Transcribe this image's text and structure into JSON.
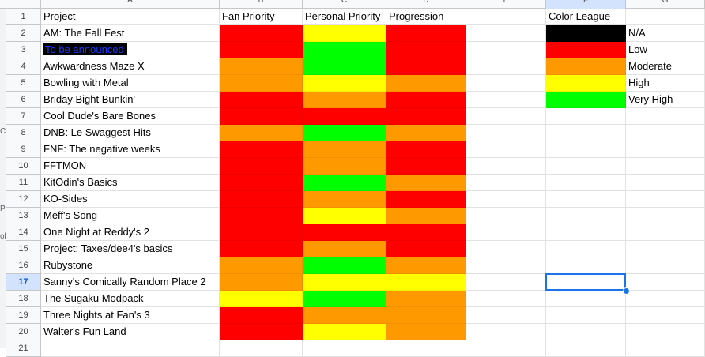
{
  "colors": {
    "red": "#ff0000",
    "orange": "#ff9900",
    "yellow": "#ffff00",
    "green": "#00ff00",
    "black": "#000000",
    "selection": "#1a73e8"
  },
  "column_headers": [
    "A",
    "B",
    "C",
    "D",
    "E",
    "F",
    "G"
  ],
  "headers": {
    "project": "Project",
    "fan_priority": "Fan Priority",
    "personal_priority": "Personal Priority",
    "progression": "Progression",
    "color_league": "Color League"
  },
  "left_edge_fragments": [
    "C",
    "P",
    "ol"
  ],
  "rows": [
    {
      "num": "2",
      "project": "AM: The Fall Fest",
      "fan": "red",
      "personal": "yellow",
      "progress": "red"
    },
    {
      "num": "3",
      "project": "To be announced",
      "fan": "red",
      "personal": "green",
      "progress": "red",
      "special": "tba"
    },
    {
      "num": "4",
      "project": "Awkwardness Maze X",
      "fan": "orange",
      "personal": "green",
      "progress": "red"
    },
    {
      "num": "5",
      "project": "Bowling with Metal",
      "fan": "orange",
      "personal": "yellow",
      "progress": "orange"
    },
    {
      "num": "6",
      "project": "Briday Bight Bunkin'",
      "fan": "red",
      "personal": "orange",
      "progress": "red"
    },
    {
      "num": "7",
      "project": "Cool Dude's Bare Bones",
      "fan": "red",
      "personal": "red",
      "progress": "red"
    },
    {
      "num": "8",
      "project": "DNB: Le Swaggest Hits",
      "fan": "orange",
      "personal": "green",
      "progress": "orange"
    },
    {
      "num": "9",
      "project": "FNF: The negative weeks",
      "fan": "red",
      "personal": "orange",
      "progress": "red"
    },
    {
      "num": "10",
      "project": "FFTMON",
      "fan": "red",
      "personal": "orange",
      "progress": "red"
    },
    {
      "num": "11",
      "project": "KitOdin's Basics",
      "fan": "red",
      "personal": "green",
      "progress": "orange"
    },
    {
      "num": "12",
      "project": "KO-Sides",
      "fan": "red",
      "personal": "orange",
      "progress": "red"
    },
    {
      "num": "13",
      "project": "Meff's Song",
      "fan": "red",
      "personal": "yellow",
      "progress": "orange"
    },
    {
      "num": "14",
      "project": "One Night at Reddy's 2",
      "fan": "red",
      "personal": "red",
      "progress": "red"
    },
    {
      "num": "15",
      "project": "Project: Taxes/dee4's basics",
      "fan": "red",
      "personal": "orange",
      "progress": "red"
    },
    {
      "num": "16",
      "project": "Rubystone",
      "fan": "orange",
      "personal": "green",
      "progress": "orange"
    },
    {
      "num": "17",
      "project": "Sanny's Comically Random Place 2",
      "fan": "orange",
      "personal": "yellow",
      "progress": "yellow"
    },
    {
      "num": "18",
      "project": "The Sugaku Modpack",
      "fan": "yellow",
      "personal": "green",
      "progress": "orange"
    },
    {
      "num": "19",
      "project": "Three Nights at Fan's 3",
      "fan": "red",
      "personal": "orange",
      "progress": "orange"
    },
    {
      "num": "20",
      "project": "Walter's Fun Land",
      "fan": "red",
      "personal": "yellow",
      "progress": "orange"
    }
  ],
  "legend": [
    {
      "color": "black",
      "label": "N/A"
    },
    {
      "color": "red",
      "label": "Low"
    },
    {
      "color": "orange",
      "label": "Moderate"
    },
    {
      "color": "yellow",
      "label": "High"
    },
    {
      "color": "green",
      "label": "Very High"
    }
  ],
  "row_numbers": {
    "header": "1",
    "last_partial": "21"
  },
  "selected_row": "17"
}
